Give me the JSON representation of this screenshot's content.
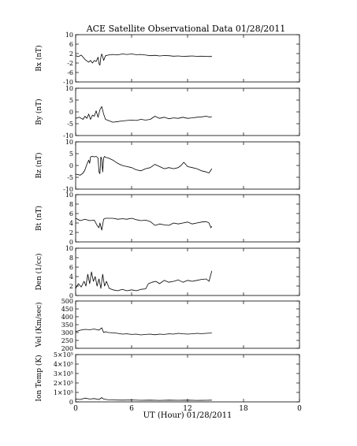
{
  "chart_data": {
    "type": "line",
    "title": "ACE Satellite Observational Data   01/28/2011",
    "xlabel": "UT (Hour)  01/28/2011",
    "xlim": [
      0,
      24
    ],
    "x_tick_labels": [
      "0",
      "6",
      "12",
      "18",
      "0"
    ],
    "grid": false,
    "line_color": "#000000",
    "panels": [
      {
        "ylabel": "Bx (nT)",
        "ylim": [
          -11,
          11
        ],
        "y_tick_labels": [
          "10",
          "6",
          "2",
          "-2",
          "-6",
          "-10"
        ],
        "series": {
          "x": [
            0,
            0.3,
            0.6,
            0.8,
            1.0,
            1.2,
            1.4,
            1.6,
            1.8,
            2.0,
            2.2,
            2.4,
            2.5,
            2.6,
            2.7,
            2.8,
            2.9,
            3.0,
            3.2,
            3.5,
            4,
            4.5,
            5,
            5.5,
            6,
            6.5,
            7,
            7.5,
            8,
            8.5,
            9,
            9.5,
            10,
            10.5,
            11,
            11.5,
            12,
            12.5,
            13,
            13.5,
            14,
            14.4,
            14.6
          ],
          "y": [
            1.2,
            0.8,
            1.5,
            0.5,
            -0.5,
            -1.2,
            -1.8,
            -1.0,
            -2.2,
            -1.0,
            -1.5,
            0.5,
            -2.5,
            -3.2,
            0.5,
            2.0,
            0.8,
            -1.0,
            1.2,
            1.5,
            1.8,
            1.6,
            2.0,
            1.8,
            2.0,
            1.7,
            1.8,
            1.5,
            1.2,
            1.4,
            1.1,
            1.3,
            1.2,
            1.0,
            1.1,
            0.9,
            1.0,
            1.1,
            0.9,
            1.0,
            0.9,
            0.8,
            1.0
          ]
        }
      },
      {
        "ylabel": "By (nT)",
        "ylim": [
          -11,
          11
        ],
        "y_tick_labels": [
          "10",
          "5",
          "0",
          "-5",
          "-10"
        ],
        "series": {
          "x": [
            0,
            0.4,
            0.8,
            1.0,
            1.2,
            1.4,
            1.6,
            1.8,
            2.0,
            2.2,
            2.4,
            2.6,
            2.8,
            3.0,
            3.2,
            3.5,
            4,
            4.5,
            5,
            5.5,
            6,
            6.5,
            7,
            7.5,
            8,
            8.5,
            9,
            9.5,
            10,
            10.5,
            11,
            11.5,
            12,
            12.5,
            13,
            13.5,
            14,
            14.4,
            14.6
          ],
          "y": [
            -3.0,
            -2.5,
            -3.5,
            -2.0,
            -3.0,
            -1.0,
            -3.5,
            -1.5,
            -2.0,
            0.5,
            -2.5,
            1.0,
            2.5,
            -1.0,
            -3.5,
            -4.0,
            -4.8,
            -4.5,
            -4.2,
            -4.0,
            -3.8,
            -4.0,
            -3.5,
            -3.8,
            -3.5,
            -2.0,
            -3.0,
            -2.5,
            -3.2,
            -2.8,
            -3.0,
            -2.5,
            -3.0,
            -2.8,
            -2.5,
            -2.3,
            -2.0,
            -2.5,
            -2.2
          ]
        }
      },
      {
        "ylabel": "Bz (nT)",
        "ylim": [
          -11,
          11
        ],
        "y_tick_labels": [
          "10",
          "5",
          "0",
          "-5",
          "-10"
        ],
        "series": {
          "x": [
            0,
            0.5,
            0.8,
            1.0,
            1.2,
            1.4,
            1.5,
            1.6,
            1.8,
            2.0,
            2.2,
            2.4,
            2.5,
            2.6,
            2.7,
            2.8,
            2.9,
            3.0,
            3.1,
            3.2,
            3.5,
            4,
            4.5,
            5,
            5.5,
            6,
            6.5,
            7,
            7.5,
            8,
            8.5,
            9,
            9.5,
            10,
            10.5,
            11,
            11.3,
            11.6,
            12,
            12.5,
            13,
            13.5,
            14,
            14.3,
            14.6
          ],
          "y": [
            -4.0,
            -4.5,
            -3.5,
            -2.0,
            0.5,
            2.5,
            1.0,
            4.0,
            4.3,
            4.0,
            4.2,
            3.5,
            -3.0,
            -3.8,
            4.0,
            3.0,
            -3.0,
            3.5,
            4.2,
            3.8,
            3.5,
            2.5,
            1.0,
            0.0,
            -0.5,
            -1.0,
            -2.0,
            -2.5,
            -1.5,
            -1.0,
            0.5,
            -0.5,
            -1.5,
            -1.0,
            -1.5,
            -1.0,
            0.0,
            1.5,
            -0.5,
            -1.0,
            -1.5,
            -2.5,
            -3.0,
            -3.5,
            -1.5
          ]
        }
      },
      {
        "ylabel": "Bt (nT)",
        "ylim": [
          0,
          10
        ],
        "y_tick_labels": [
          "10",
          "8",
          "6",
          "4",
          "2",
          "0"
        ],
        "series": {
          "x": [
            0,
            0.5,
            1.0,
            1.5,
            2.0,
            2.3,
            2.5,
            2.6,
            2.8,
            3.0,
            3.2,
            3.5,
            4,
            4.5,
            5,
            5.5,
            6,
            6.5,
            7,
            7.5,
            8,
            8.5,
            9,
            9.5,
            10,
            10.5,
            11,
            11.5,
            12,
            12.5,
            13,
            13.5,
            14,
            14.3,
            14.5,
            14.6
          ],
          "y": [
            5.0,
            4.5,
            4.8,
            4.5,
            4.6,
            3.5,
            3.0,
            4.0,
            2.5,
            4.8,
            5.0,
            5.0,
            5.0,
            4.8,
            4.9,
            4.8,
            5.0,
            4.7,
            4.5,
            4.6,
            4.3,
            3.5,
            3.8,
            3.6,
            3.5,
            4.0,
            3.8,
            4.0,
            4.2,
            3.8,
            4.0,
            4.2,
            4.3,
            4.0,
            3.0,
            3.3
          ]
        }
      },
      {
        "ylabel": "Den (1/cc)",
        "ylim": [
          0,
          10
        ],
        "y_tick_labels": [
          "10",
          "8",
          "6",
          "4",
          "2",
          "0"
        ],
        "series": {
          "x": [
            0,
            0.3,
            0.6,
            0.9,
            1.1,
            1.3,
            1.5,
            1.7,
            1.9,
            2.1,
            2.3,
            2.5,
            2.7,
            2.9,
            3.1,
            3.3,
            3.6,
            4,
            4.5,
            5,
            5.5,
            6,
            6.5,
            7,
            7.5,
            7.8,
            8.2,
            8.6,
            9,
            9.5,
            10,
            10.5,
            11,
            11.5,
            12,
            12.5,
            13,
            13.5,
            14,
            14.3,
            14.5,
            14.6
          ],
          "y": [
            1.5,
            2.5,
            1.8,
            3.0,
            2.0,
            4.5,
            2.5,
            5.0,
            3.0,
            4.0,
            2.0,
            3.5,
            1.5,
            4.5,
            2.0,
            3.0,
            1.5,
            1.2,
            1.0,
            1.3,
            1.0,
            1.2,
            1.0,
            1.3,
            1.4,
            2.5,
            2.8,
            3.0,
            2.5,
            3.2,
            2.8,
            3.0,
            3.3,
            2.8,
            3.2,
            3.0,
            3.2,
            3.4,
            3.5,
            3.0,
            4.5,
            5.2
          ]
        }
      },
      {
        "ylabel": "Vel (Km/sec)",
        "ylim": [
          200,
          500
        ],
        "y_tick_labels": [
          "500",
          "450",
          "400",
          "350",
          "300",
          "250",
          "200"
        ],
        "series": {
          "x": [
            0,
            0.5,
            1,
            1.5,
            2,
            2.5,
            2.8,
            3.0,
            3.2,
            3.5,
            4,
            4.5,
            5,
            5.5,
            6,
            6.5,
            7,
            7.5,
            8,
            8.5,
            9,
            9.5,
            10,
            10.5,
            11,
            11.5,
            12,
            12.5,
            13,
            13.5,
            14,
            14.6
          ],
          "y": [
            305,
            315,
            320,
            318,
            322,
            315,
            330,
            300,
            305,
            300,
            298,
            295,
            290,
            292,
            288,
            290,
            285,
            288,
            290,
            286,
            290,
            288,
            292,
            290,
            295,
            292,
            290,
            292,
            295,
            293,
            295,
            297
          ]
        }
      },
      {
        "ylabel": "Ion Temp (K)",
        "ylim": [
          0,
          500000
        ],
        "y_tick_labels": [
          "5×10⁵",
          "4×10⁵",
          "3×10⁵",
          "2×10⁵",
          "1×10⁵",
          "0"
        ],
        "series": {
          "x": [
            0,
            0.5,
            1,
            1.5,
            2,
            2.5,
            2.8,
            3.0,
            3.5,
            4,
            5,
            6,
            7,
            8,
            9,
            10,
            11,
            12,
            13,
            14,
            14.6
          ],
          "y": [
            30000,
            25000,
            40000,
            30000,
            35000,
            25000,
            45000,
            30000,
            22000,
            20000,
            18000,
            20000,
            17000,
            18000,
            16000,
            18000,
            17000,
            18000,
            16000,
            17000,
            18000
          ]
        }
      }
    ]
  }
}
